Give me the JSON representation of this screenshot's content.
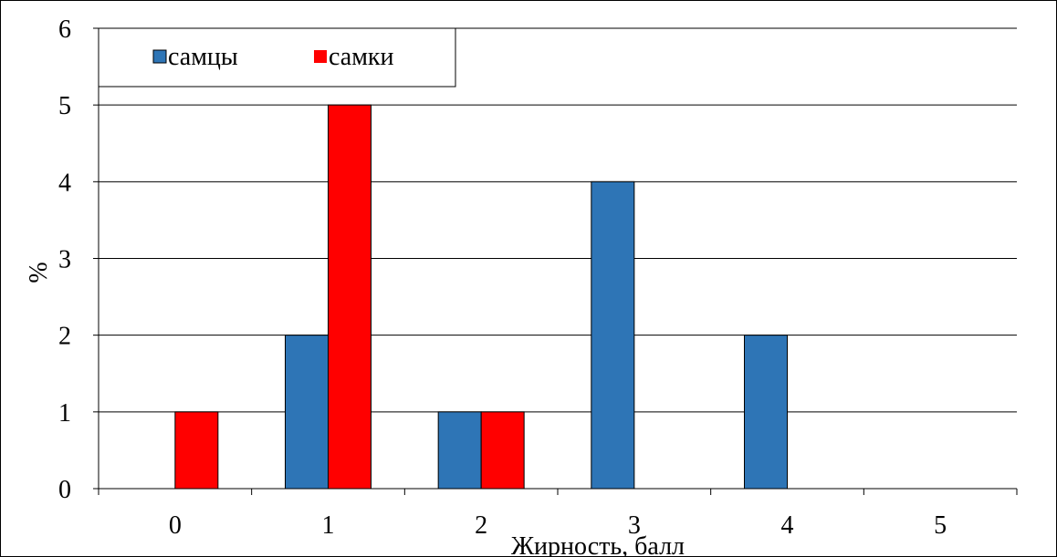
{
  "chart_data": {
    "type": "bar",
    "title": "",
    "xlabel": "Жирность, балл",
    "ylabel": "%",
    "categories": [
      "0",
      "1",
      "2",
      "3",
      "4",
      "5"
    ],
    "series": [
      {
        "name": "самцы",
        "color": "#2E75B6",
        "values": [
          0,
          2,
          1,
          4,
          2,
          0
        ]
      },
      {
        "name": "самки",
        "color": "#FF0000",
        "values": [
          1,
          5,
          1,
          0,
          0,
          0
        ]
      }
    ],
    "ylim": [
      0,
      6
    ],
    "yticks": [
      "0",
      "1",
      "2",
      "3",
      "4",
      "5",
      "6"
    ],
    "grid": true,
    "legend_position": "top-left"
  }
}
